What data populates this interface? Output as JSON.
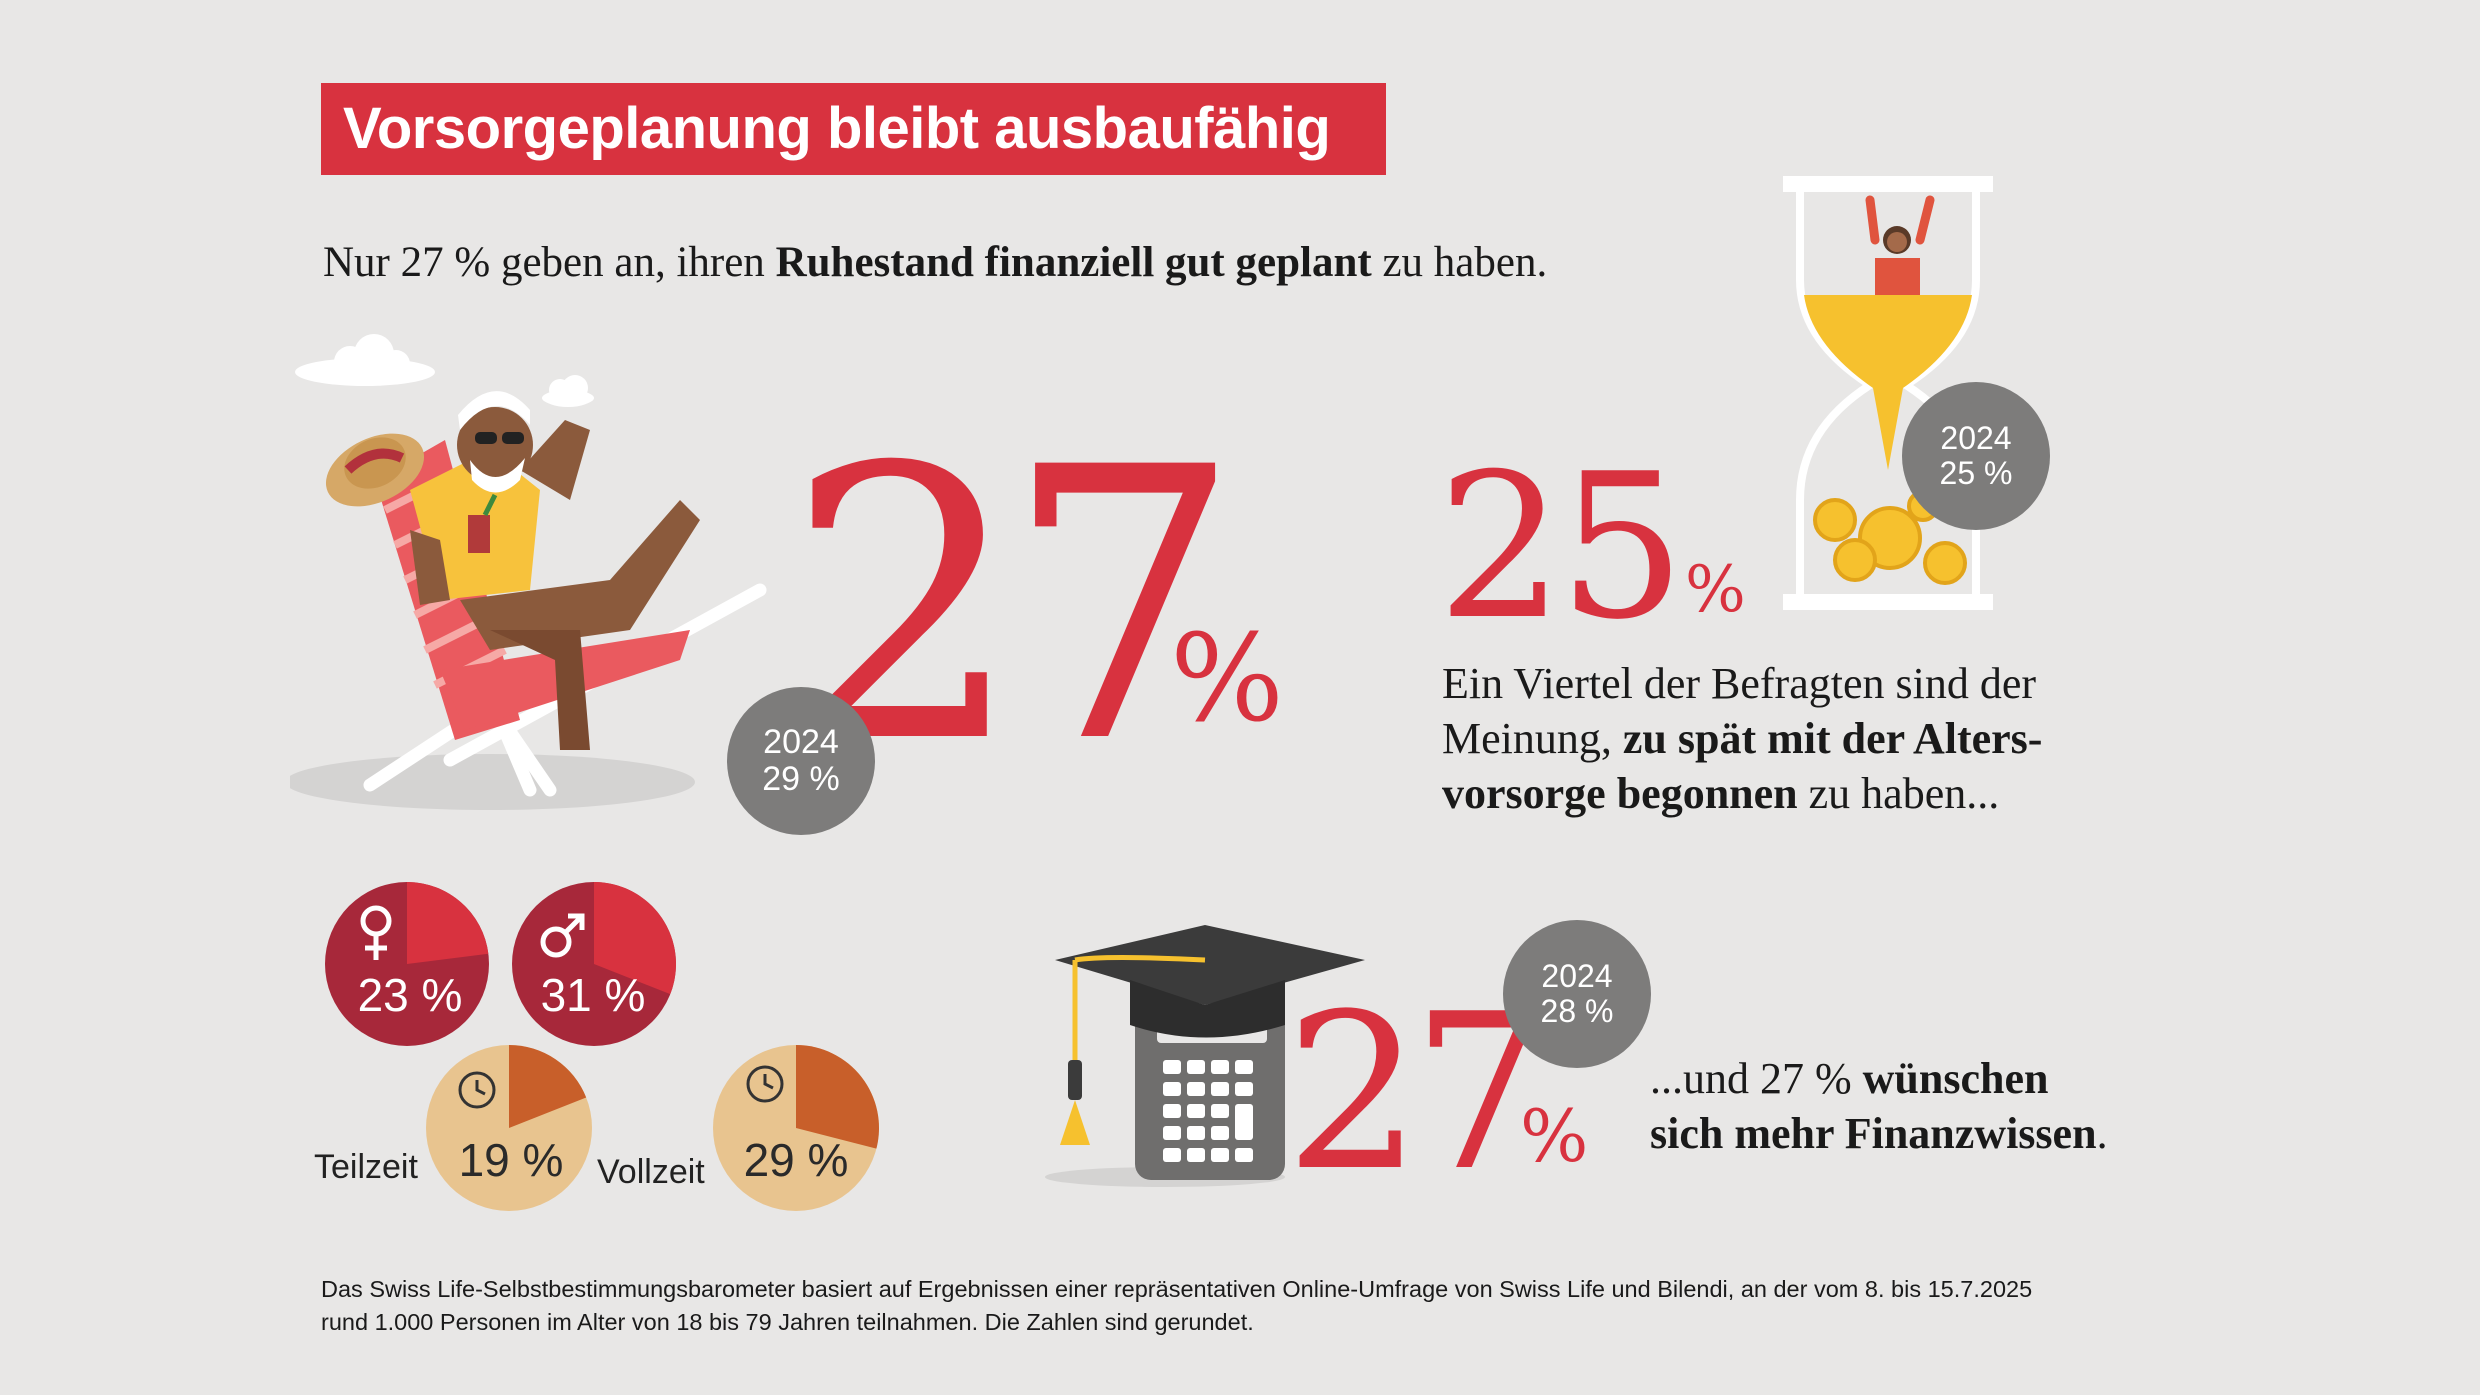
{
  "title": "Vorsorgeplanung bleibt ausbaufähig",
  "subtitle": {
    "before": "Nur 27 % geben an, ihren ",
    "bold": "Ruhestand  finanziell gut geplant",
    "after": " zu haben."
  },
  "stat_retirement": {
    "value": "27",
    "unit": "%",
    "badge_year": "2024",
    "badge_value": "29 %"
  },
  "stat_too_late": {
    "value": "25",
    "unit": "%",
    "badge_year": "2024",
    "badge_value": "25 %",
    "text_1": "Ein Viertel der Befragten sind der",
    "text_2a": "Meinung, ",
    "text_2b": "zu spät mit der Alters-",
    "text_3a": "vorsorge begonnen",
    "text_3b": " zu haben..."
  },
  "stat_knowledge": {
    "value": "27",
    "unit": "%",
    "badge_year": "2024",
    "badge_value": "28 %",
    "text_1a": "...und 27 % ",
    "text_1b": "wünschen",
    "text_2": "sich mehr Finanzwissen",
    "text_2c": "."
  },
  "breakdown": {
    "female": {
      "label": "23 %",
      "value": 23,
      "icon": "female-symbol-icon"
    },
    "male": {
      "label": "31 %",
      "value": 31,
      "icon": "male-symbol-icon"
    },
    "parttime": {
      "name": "Teilzeit",
      "label": "19 %",
      "value": 19,
      "icon": "clock-icon"
    },
    "fulltime": {
      "name": "Vollzeit",
      "label": "29 %",
      "value": 29,
      "icon": "clock-icon"
    }
  },
  "colors": {
    "red": "#d8323f",
    "dark_red": "#a7283a",
    "tan": "#e8c48f",
    "orange": "#c85f2a",
    "gray_badge": "#7d7c7b",
    "background": "#e8e7e6"
  },
  "footnote": {
    "line1": "Das Swiss Life-Selbstbestimmungsbarometer basiert auf Ergebnissen einer repräsentativen Online-Umfrage von Swiss Life und Bilendi, an der vom 8. bis 15.7.2025",
    "line2": "rund 1.000 Personen im Alter von 18 bis 79 Jahren teilnahmen. Die Zahlen sind gerundet."
  }
}
